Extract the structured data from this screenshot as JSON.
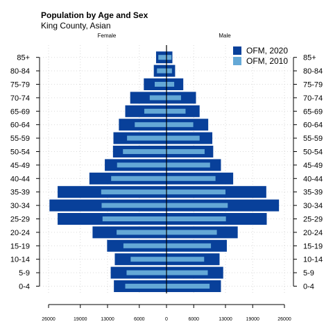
{
  "chart_data": {
    "type": "bar",
    "orientation": "horizontal",
    "title": "Population by Age and Sex",
    "subtitle": "King County, Asian",
    "left_label": "Female",
    "right_label": "Male",
    "categories": [
      "0-4",
      "5-9",
      "10-14",
      "15-19",
      "20-24",
      "25-29",
      "30-34",
      "35-39",
      "40-44",
      "45-49",
      "50-54",
      "55-59",
      "60-64",
      "65-69",
      "70-74",
      "75-79",
      "80-84",
      "85+"
    ],
    "xlim": [
      -26000,
      26000
    ],
    "xticks": [
      -26000,
      -19000,
      -13000,
      -6000,
      0,
      6000,
      13000,
      19000,
      26000
    ],
    "xtick_labels": [
      "26000",
      "19000",
      "13000",
      "6000",
      "0",
      "6000",
      "13000",
      "19000",
      "26000"
    ],
    "legend_position": "top-right",
    "grid": true,
    "series": [
      {
        "name": "OFM, 2020",
        "color": "#08409a",
        "female": [
          11600,
          12300,
          11400,
          13100,
          16300,
          24000,
          25800,
          24000,
          17000,
          13600,
          11800,
          11700,
          10500,
          9100,
          8000,
          5000,
          2800,
          2300
        ],
        "male": [
          12000,
          12500,
          11700,
          13300,
          15700,
          22100,
          24800,
          22000,
          14700,
          12000,
          10300,
          10100,
          9200,
          7300,
          6500,
          3700,
          1900,
          1300
        ]
      },
      {
        "name": "OFM, 2010",
        "color": "#64a8d6",
        "female": [
          9100,
          8800,
          7900,
          9500,
          11000,
          14100,
          14300,
          14400,
          12200,
          10900,
          9600,
          8700,
          7000,
          4900,
          3700,
          2600,
          2100,
          1800
        ],
        "male": [
          9500,
          9100,
          8300,
          9800,
          11100,
          13100,
          13500,
          13000,
          10800,
          9600,
          8400,
          7300,
          5900,
          4200,
          3200,
          1700,
          1200,
          1100
        ]
      }
    ]
  }
}
